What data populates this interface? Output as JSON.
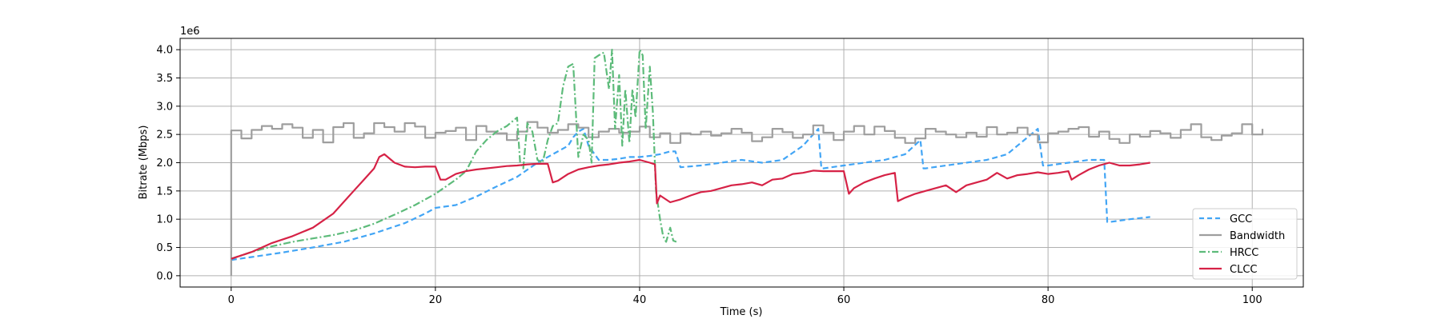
{
  "chart_data": {
    "type": "line",
    "title": "",
    "xlabel": "Time (s)",
    "ylabel": "Bitrate (Mbps)",
    "y_offset_label": "1e6",
    "xlim": [
      -5,
      105
    ],
    "ylim": [
      -0.2,
      4.2
    ],
    "x_ticks": [
      0,
      20,
      40,
      60,
      80,
      100
    ],
    "y_ticks": [
      0.0,
      0.5,
      1.0,
      1.5,
      2.0,
      2.5,
      3.0,
      3.5,
      4.0
    ],
    "x_tick_labels": [
      "0",
      "20",
      "40",
      "60",
      "80",
      "100"
    ],
    "y_tick_labels": [
      "0.0",
      "0.5",
      "1.0",
      "1.5",
      "2.0",
      "2.5",
      "3.0",
      "3.5",
      "4.0"
    ],
    "grid": true,
    "legend_position": "bottom-right",
    "series": [
      {
        "name": "GCC",
        "color": "#42a5f5",
        "style": "dashed",
        "x": [
          0,
          2,
          5,
          8,
          11,
          14,
          17,
          19,
          20,
          22,
          24,
          26,
          28,
          30,
          31,
          32,
          33,
          33.5,
          34,
          34.5,
          35,
          36,
          37,
          38,
          39,
          40,
          41,
          42,
          43,
          43.5,
          44,
          46,
          48,
          50,
          52,
          54,
          56,
          57.5,
          57.8,
          58,
          60,
          62,
          64,
          66,
          67.5,
          67.8,
          68,
          70,
          72,
          74,
          76,
          78,
          79,
          79.5,
          80,
          82,
          84,
          85.5,
          85.8,
          86,
          88,
          90
        ],
        "y": [
          0.28,
          0.33,
          0.41,
          0.5,
          0.6,
          0.75,
          0.93,
          1.1,
          1.2,
          1.25,
          1.4,
          1.58,
          1.75,
          2.0,
          2.1,
          2.2,
          2.3,
          2.45,
          2.55,
          2.6,
          2.3,
          2.05,
          2.05,
          2.07,
          2.1,
          2.1,
          2.12,
          2.15,
          2.2,
          2.2,
          1.92,
          1.95,
          2.0,
          2.05,
          2.0,
          2.05,
          2.3,
          2.6,
          1.9,
          1.9,
          1.95,
          2.0,
          2.05,
          2.15,
          2.4,
          1.9,
          1.9,
          1.95,
          2.0,
          2.05,
          2.15,
          2.45,
          2.6,
          1.95,
          1.95,
          2.0,
          2.05,
          2.05,
          0.95,
          0.95,
          1.0,
          1.04
        ]
      },
      {
        "name": "Bandwidth",
        "color": "#9e9e9e",
        "style": "step",
        "x": [
          0,
          0,
          1,
          2,
          3,
          4,
          5,
          6,
          7,
          8,
          9,
          10,
          11,
          12,
          13,
          14,
          15,
          16,
          17,
          18,
          19,
          20,
          21,
          22,
          23,
          24,
          25,
          26,
          27,
          28,
          29,
          30,
          31,
          32,
          33,
          34,
          35,
          36,
          37,
          38,
          39,
          40,
          41,
          42,
          43,
          44,
          45,
          46,
          47,
          48,
          49,
          50,
          51,
          52,
          53,
          54,
          55,
          56,
          57,
          58,
          59,
          60,
          61,
          62,
          63,
          64,
          65,
          66,
          67,
          68,
          69,
          70,
          71,
          72,
          73,
          74,
          75,
          76,
          77,
          78,
          79,
          80,
          81,
          82,
          83,
          84,
          85,
          86,
          87,
          88,
          89,
          90,
          91,
          92,
          93,
          94,
          95,
          96,
          97,
          98,
          99,
          100,
          101
        ],
        "y": [
          0.0,
          2.57,
          2.43,
          2.58,
          2.65,
          2.6,
          2.68,
          2.62,
          2.44,
          2.58,
          2.36,
          2.63,
          2.7,
          2.44,
          2.52,
          2.7,
          2.63,
          2.55,
          2.7,
          2.64,
          2.44,
          2.53,
          2.56,
          2.62,
          2.4,
          2.65,
          2.55,
          2.52,
          2.4,
          2.55,
          2.72,
          2.62,
          2.53,
          2.58,
          2.68,
          2.62,
          2.45,
          2.55,
          2.6,
          2.53,
          2.55,
          2.64,
          2.45,
          2.52,
          2.35,
          2.52,
          2.5,
          2.55,
          2.48,
          2.52,
          2.6,
          2.53,
          2.38,
          2.45,
          2.6,
          2.54,
          2.44,
          2.5,
          2.66,
          2.53,
          2.4,
          2.55,
          2.65,
          2.5,
          2.64,
          2.56,
          2.44,
          2.35,
          2.43,
          2.6,
          2.55,
          2.5,
          2.45,
          2.53,
          2.46,
          2.63,
          2.5,
          2.53,
          2.62,
          2.5,
          2.36,
          2.52,
          2.55,
          2.6,
          2.63,
          2.46,
          2.55,
          2.42,
          2.35,
          2.5,
          2.46,
          2.56,
          2.52,
          2.44,
          2.58,
          2.68,
          2.45,
          2.4,
          2.48,
          2.52,
          2.68,
          2.5,
          2.6
        ]
      },
      {
        "name": "HRCC",
        "color": "#5dbb7a",
        "style": "dashdot",
        "x": [
          0,
          2,
          4,
          6,
          8,
          10,
          12,
          14,
          16,
          18,
          20,
          22,
          23,
          24,
          25,
          26,
          27,
          28,
          28.3,
          28.6,
          29,
          29.5,
          30,
          30.5,
          31,
          31.5,
          32,
          32.5,
          33,
          33.5,
          34,
          34.5,
          35,
          35.3,
          35.6,
          36,
          36.5,
          37,
          37.3,
          37.6,
          38,
          38.3,
          38.6,
          39,
          39.3,
          39.6,
          40,
          40.3,
          40.6,
          41,
          41.3,
          41.6,
          42,
          42.3,
          42.6,
          43,
          43.3,
          43.6
        ],
        "y": [
          0.3,
          0.42,
          0.52,
          0.6,
          0.66,
          0.72,
          0.8,
          0.92,
          1.08,
          1.25,
          1.45,
          1.7,
          1.85,
          2.2,
          2.4,
          2.55,
          2.65,
          2.8,
          2.0,
          1.9,
          2.7,
          2.55,
          2.05,
          2.0,
          2.4,
          2.65,
          2.7,
          3.35,
          3.7,
          3.75,
          2.1,
          2.5,
          2.4,
          2.0,
          3.85,
          3.9,
          3.95,
          3.3,
          4.0,
          2.6,
          3.55,
          2.3,
          3.3,
          2.35,
          3.3,
          2.8,
          4.0,
          3.9,
          2.6,
          3.7,
          2.9,
          1.5,
          1.0,
          0.7,
          0.6,
          0.85,
          0.62,
          0.6
        ]
      },
      {
        "name": "CLCC",
        "color": "#d62246",
        "style": "solid",
        "x": [
          0,
          2,
          4,
          6,
          8,
          10,
          12,
          13,
          14,
          14.5,
          15,
          16,
          17,
          18,
          19,
          20,
          20.5,
          21,
          22,
          23,
          24,
          25,
          26,
          27,
          28,
          29,
          30,
          31,
          31.5,
          32,
          33,
          34,
          35,
          36,
          37,
          38,
          39,
          40,
          41,
          41.5,
          41.7,
          42,
          43,
          44,
          45,
          46,
          47,
          48,
          49,
          50,
          51,
          52,
          53,
          54,
          55,
          56,
          57,
          58,
          59,
          60,
          60.5,
          61,
          62,
          63,
          64,
          65,
          65.3,
          66,
          67,
          68,
          69,
          70,
          71,
          72,
          73,
          74,
          75,
          76,
          77,
          78,
          79,
          80,
          81,
          82,
          82.3,
          83,
          84,
          85,
          86,
          87,
          88,
          89,
          90
        ],
        "y": [
          0.3,
          0.42,
          0.58,
          0.7,
          0.85,
          1.1,
          1.5,
          1.7,
          1.9,
          2.1,
          2.15,
          2.0,
          1.93,
          1.92,
          1.93,
          1.93,
          1.7,
          1.7,
          1.8,
          1.85,
          1.88,
          1.9,
          1.92,
          1.94,
          1.95,
          1.97,
          1.98,
          1.98,
          1.65,
          1.68,
          1.8,
          1.88,
          1.92,
          1.95,
          1.97,
          2.0,
          2.02,
          2.05,
          2.0,
          1.97,
          1.28,
          1.42,
          1.3,
          1.35,
          1.42,
          1.48,
          1.5,
          1.55,
          1.6,
          1.62,
          1.65,
          1.6,
          1.7,
          1.72,
          1.8,
          1.82,
          1.86,
          1.85,
          1.85,
          1.85,
          1.45,
          1.55,
          1.65,
          1.72,
          1.78,
          1.82,
          1.32,
          1.38,
          1.45,
          1.5,
          1.55,
          1.6,
          1.48,
          1.6,
          1.65,
          1.7,
          1.82,
          1.72,
          1.78,
          1.8,
          1.83,
          1.8,
          1.82,
          1.85,
          1.7,
          1.78,
          1.88,
          1.95,
          2.0,
          1.95,
          1.95,
          1.97,
          2.0
        ]
      }
    ]
  }
}
